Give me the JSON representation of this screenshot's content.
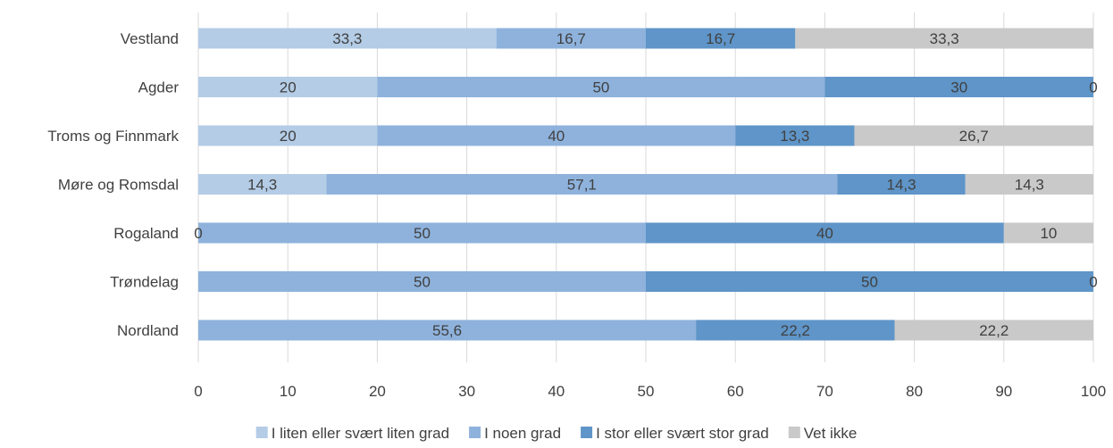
{
  "chart_data": {
    "type": "bar",
    "orientation": "horizontal",
    "stacked": true,
    "categories": [
      "Vestland",
      "Agder",
      "Troms og Finnmark",
      "Møre og Romsdal",
      "Rogaland",
      "Trøndelag",
      "Nordland"
    ],
    "series": [
      {
        "name": "I liten eller svært liten grad",
        "color": "#b4cce6",
        "values": [
          33.3,
          20,
          20,
          14.3,
          0,
          null,
          null
        ]
      },
      {
        "name": "I noen grad",
        "color": "#8eb2dc",
        "values": [
          16.7,
          50,
          40,
          57.1,
          50,
          50,
          55.6
        ]
      },
      {
        "name": "I stor eller svært stor grad",
        "color": "#5f95c8",
        "values": [
          16.7,
          30,
          13.3,
          14.3,
          40,
          50,
          22.2
        ]
      },
      {
        "name": "Vet ikke",
        "color": "#c9c9c9",
        "values": [
          33.3,
          0,
          26.7,
          14.3,
          10,
          0,
          22.2
        ]
      }
    ],
    "x_ticks": [
      "0",
      "10",
      "20",
      "30",
      "40",
      "50",
      "60",
      "70",
      "80",
      "90",
      "100"
    ],
    "xlim": [
      0,
      100
    ],
    "grid": true,
    "legend_position": "bottom",
    "title": "",
    "xlabel": "",
    "ylabel": ""
  }
}
